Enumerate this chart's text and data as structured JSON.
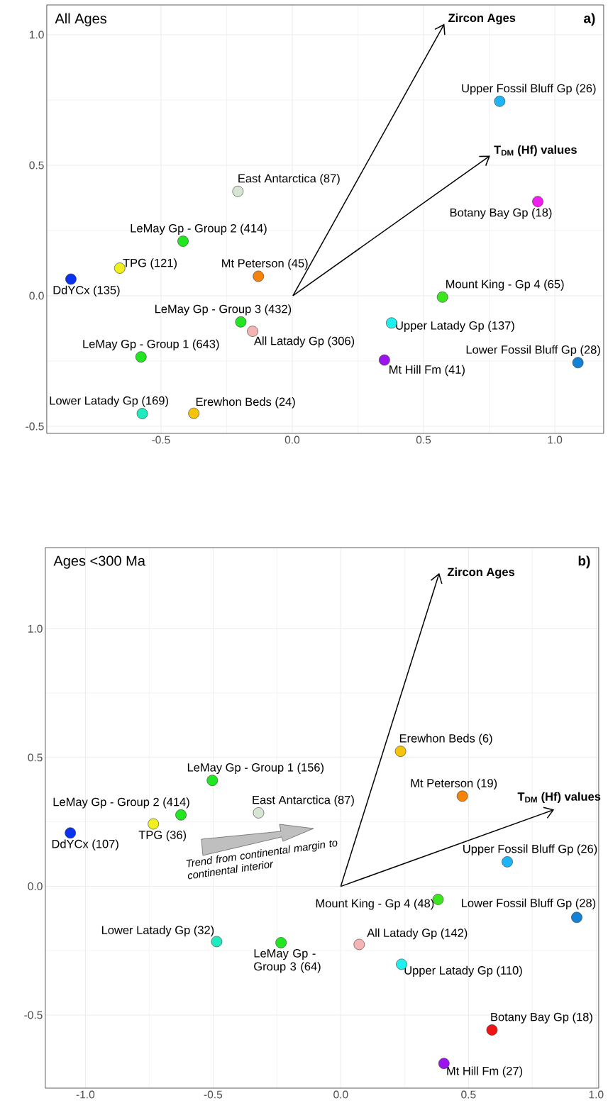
{
  "chart_data": [
    {
      "type": "scatter",
      "title": "All Ages",
      "annotations": [
        "a)",
        "Zircon Ages",
        "T$_{DM}$ (Hf) values"
      ],
      "xlim": [
        -0.935,
        1.186
      ],
      "ylim": [
        -0.527,
        1.114
      ],
      "xticks": [
        {
          "value": -0.5,
          "label": "-0.5"
        },
        {
          "value": 0,
          "label": "0.0"
        },
        {
          "value": 0.5,
          "label": "0.5"
        },
        {
          "value": 1,
          "label": "1.0"
        }
      ],
      "yticks": [
        {
          "value": -0.5,
          "label": "-0.5"
        },
        {
          "value": 0,
          "label": "0.0"
        },
        {
          "value": 0.5,
          "label": "0.5"
        },
        {
          "value": 1,
          "label": "1.0"
        }
      ],
      "grid": true,
      "marker": "circle",
      "series": [
        {
          "name": "East Antarctica (87)",
          "color": "#d7e6d2",
          "x": [
            -0.207
          ],
          "values": [
            0.4
          ]
        },
        {
          "name": "LeMay Gp - Group 2 (414)",
          "color": "#22e622",
          "x": [
            -0.416
          ],
          "values": [
            0.209
          ]
        },
        {
          "name": "TPG (121)",
          "color": "#f0f01e",
          "x": [
            -0.657
          ],
          "values": [
            0.106
          ]
        },
        {
          "name": "DdYCx (135)",
          "color": "#0a32f0",
          "x": [
            -0.843
          ],
          "values": [
            0.064
          ]
        },
        {
          "name": "Mt Peterson (45)",
          "color": "#f5820a",
          "x": [
            -0.129
          ],
          "values": [
            0.075
          ]
        },
        {
          "name": "LeMay Gp - Group 3 (432)",
          "color": "#22e622",
          "x": [
            -0.196
          ],
          "values": [
            -0.1
          ]
        },
        {
          "name": "All Latady Gp (306)",
          "color": "#f5b4b4",
          "x": [
            -0.151
          ],
          "values": [
            -0.136
          ]
        },
        {
          "name": "LeMay Gp - Group 1 (643)",
          "color": "#22e622",
          "x": [
            -0.576
          ],
          "values": [
            -0.234
          ]
        },
        {
          "name": "Lower Latady Gp (169)",
          "color": "#1eebbe",
          "x": [
            -0.571
          ],
          "values": [
            -0.451
          ]
        },
        {
          "name": "Erewhon Beds (24)",
          "color": "#f5c30a",
          "x": [
            -0.375
          ],
          "values": [
            -0.45
          ]
        },
        {
          "name": "Upper Fossil Bluff Gp (26)",
          "color": "#1eb4f5",
          "x": [
            0.79
          ],
          "values": [
            0.745
          ]
        },
        {
          "name": "Botany Bay Gp (18)",
          "color": "#f01ef0",
          "x": [
            0.935
          ],
          "values": [
            0.361
          ]
        },
        {
          "name": "Mount King - Gp 4 (65)",
          "color": "#3ce61e",
          "x": [
            0.572
          ],
          "values": [
            -0.005
          ]
        },
        {
          "name": "Upper Latady Gp (137)",
          "color": "#1ef0f0",
          "x": [
            0.378
          ],
          "values": [
            -0.104
          ]
        },
        {
          "name": "Mt Hill Fm (41)",
          "color": "#9b14f0",
          "x": [
            0.351
          ],
          "values": [
            -0.246
          ]
        },
        {
          "name": "Lower Fossil Bluff Gp (28)",
          "color": "#1482d2",
          "x": [
            1.088
          ],
          "values": [
            -0.256
          ]
        }
      ]
    },
    {
      "type": "scatter",
      "title": "Ages <300 Ma",
      "annotations": [
        "b)",
        "Zircon Ages",
        "T$_{DM}$ (Hf) values",
        "Trend from continental margin to continental interior"
      ],
      "xlim": [
        -1.157,
        1.01
      ],
      "ylim": [
        -0.784,
        1.315
      ],
      "xticks": [
        {
          "value": -1,
          "label": "-1.0"
        },
        {
          "value": -0.5,
          "label": "-0.5"
        },
        {
          "value": 0,
          "label": "0.0"
        },
        {
          "value": 0.5,
          "label": "0.5"
        },
        {
          "value": 1,
          "label": "1.0"
        }
      ],
      "yticks": [
        {
          "value": -0.5,
          "label": "-0.5"
        },
        {
          "value": 0,
          "label": "0.0"
        },
        {
          "value": 0.5,
          "label": "0.5"
        },
        {
          "value": 1,
          "label": "1.0"
        }
      ],
      "grid": true,
      "marker": "circle",
      "series": [
        {
          "name": "Erewhon Beds (6)",
          "color": "#f5c30a",
          "x": [
            0.234
          ],
          "values": [
            0.524
          ]
        },
        {
          "name": "LeMay Gp - Group 1 (156)",
          "color": "#22e622",
          "x": [
            -0.503
          ],
          "values": [
            0.411
          ]
        },
        {
          "name": "Mt Peterson (19)",
          "color": "#f5820a",
          "x": [
            0.476
          ],
          "values": [
            0.35
          ]
        },
        {
          "name": "East Antarctica (87)",
          "color": "#d7e6d2",
          "x": [
            -0.322
          ],
          "values": [
            0.285
          ]
        },
        {
          "name": "LeMay Gp - Group 2 (414)",
          "color": "#22e622",
          "x": [
            -0.626
          ],
          "values": [
            0.277
          ]
        },
        {
          "name": "TPG (36)",
          "color": "#f0f01e",
          "x": [
            -0.734
          ],
          "values": [
            0.242
          ]
        },
        {
          "name": "DdYCx (107)",
          "color": "#0a32f0",
          "x": [
            -1.059
          ],
          "values": [
            0.207
          ]
        },
        {
          "name": "Upper Fossil Bluff Gp (26)",
          "color": "#1eb4f5",
          "x": [
            0.652
          ],
          "values": [
            0.095
          ]
        },
        {
          "name": "Mount King - Gp 4 (48)",
          "color": "#3ce61e",
          "x": [
            0.381
          ],
          "values": [
            -0.051
          ]
        },
        {
          "name": "Lower Fossil Bluff Gp (28)",
          "color": "#1482d2",
          "x": [
            0.924
          ],
          "values": [
            -0.121
          ]
        },
        {
          "name": "Lower Latady Gp (32)",
          "color": "#1eebbe",
          "x": [
            -0.486
          ],
          "values": [
            -0.215
          ]
        },
        {
          "name": "LeMay Gp - Group 3 (64)",
          "color": "#22e622",
          "x": [
            -0.234
          ],
          "values": [
            -0.219
          ]
        },
        {
          "name": "All Latady Gp (142)",
          "color": "#f5b4b4",
          "x": [
            0.072
          ],
          "values": [
            -0.226
          ]
        },
        {
          "name": "Upper Latady Gp (110)",
          "color": "#1ef0f0",
          "x": [
            0.238
          ],
          "values": [
            -0.303
          ]
        },
        {
          "name": "Botany Bay Gp (18)",
          "color": "#f01414",
          "x": [
            0.592
          ],
          "values": [
            -0.558
          ]
        },
        {
          "name": "Mt Hill Fm (27)",
          "color": "#9b14f0",
          "x": [
            0.404
          ],
          "values": [
            -0.688
          ]
        }
      ]
    }
  ]
}
